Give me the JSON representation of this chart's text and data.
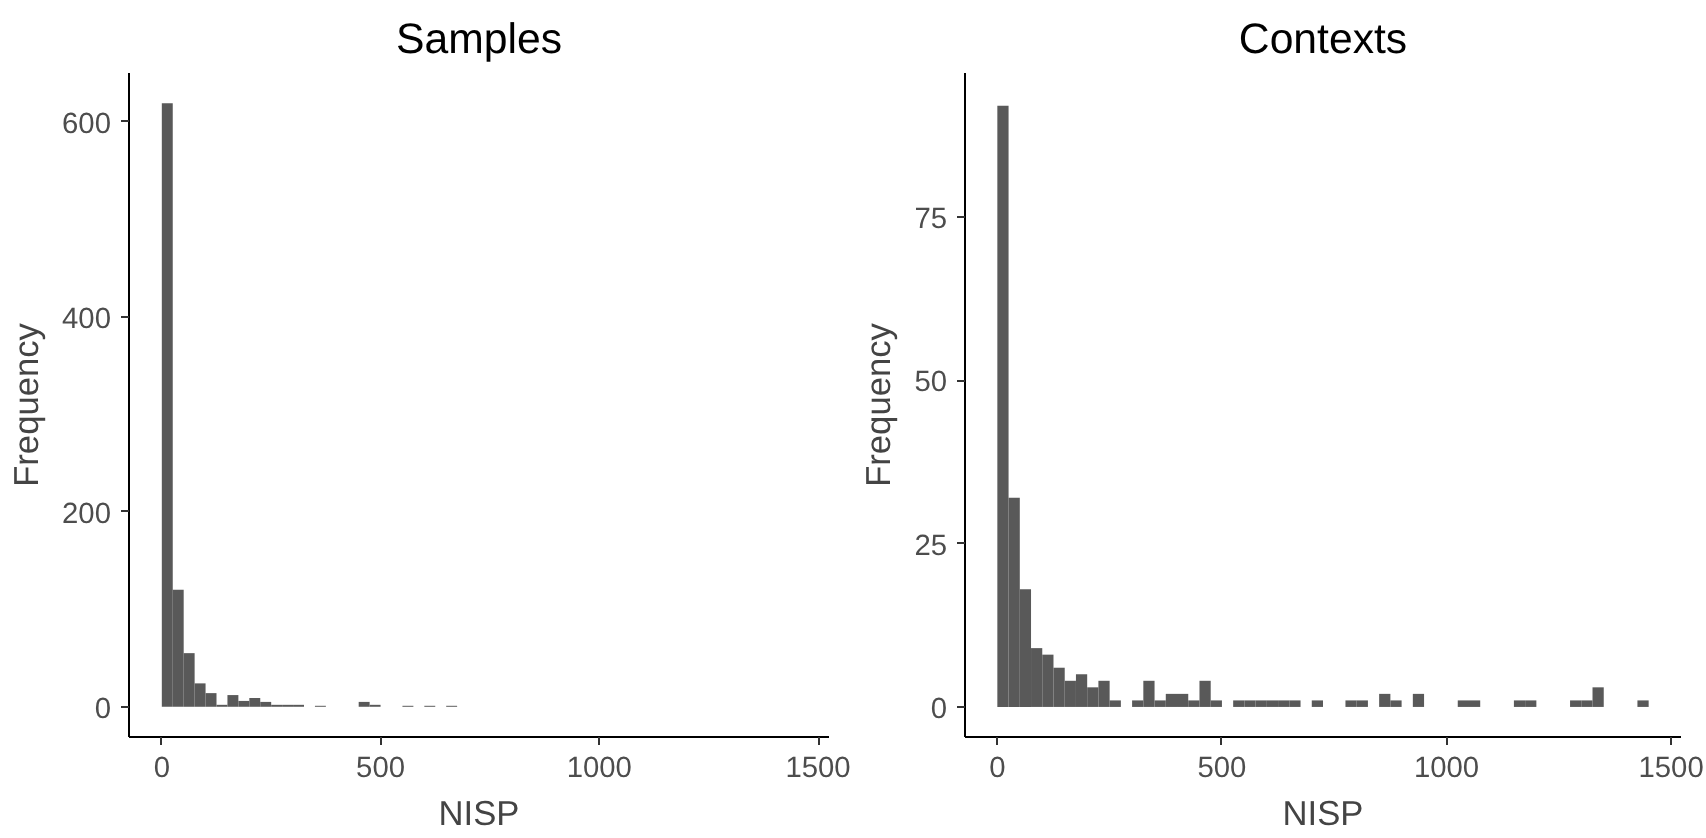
{
  "chart_data": [
    {
      "type": "histogram",
      "title": "Samples",
      "xlabel": "NISP",
      "ylabel": "Frequency",
      "color": "#595959",
      "grid": false,
      "bins": [
        0,
        25,
        50,
        75,
        100,
        125,
        150,
        175,
        200,
        225,
        250,
        275,
        300,
        325,
        350,
        375,
        400,
        425,
        450,
        475,
        500,
        525,
        550,
        575,
        600,
        625,
        650,
        675
      ],
      "values": [
        619,
        120,
        55,
        24,
        14,
        2,
        12,
        6,
        9,
        5,
        2,
        2,
        2,
        0,
        1,
        0,
        0,
        0,
        5,
        2,
        0,
        0,
        1,
        0,
        1,
        0,
        1
      ],
      "xlim": [
        -75,
        1525
      ],
      "xticks": [
        0,
        500,
        1000,
        1500
      ],
      "ylim": [
        -31,
        650
      ],
      "yticks": [
        0,
        200,
        400,
        600
      ]
    },
    {
      "type": "histogram",
      "title": "Contexts",
      "xlabel": "NISP",
      "ylabel": "Frequency",
      "color": "#595959",
      "grid": false,
      "bins": [
        0,
        25,
        50,
        75,
        100,
        125,
        150,
        175,
        200,
        225,
        250,
        275,
        300,
        325,
        350,
        375,
        400,
        425,
        450,
        475,
        500,
        525,
        550,
        575,
        600,
        625,
        650,
        675,
        700,
        725,
        750,
        775,
        800,
        825,
        850,
        875,
        900,
        925,
        950,
        975,
        1000,
        1025,
        1050,
        1075,
        1100,
        1125,
        1150,
        1175,
        1200,
        1225,
        1250,
        1275,
        1300,
        1325,
        1350,
        1375,
        1400,
        1425,
        1450
      ],
      "values": [
        92,
        32,
        18,
        9,
        8,
        6,
        4,
        5,
        3,
        4,
        1,
        0,
        1,
        4,
        1,
        2,
        2,
        1,
        4,
        1,
        0,
        1,
        1,
        1,
        1,
        1,
        1,
        0,
        1,
        0,
        0,
        1,
        1,
        0,
        2,
        1,
        0,
        2,
        0,
        0,
        0,
        1,
        1,
        0,
        0,
        0,
        1,
        1,
        0,
        0,
        0,
        1,
        1,
        3,
        0,
        0,
        0,
        1
      ],
      "xlim": [
        -72,
        1522
      ],
      "xticks": [
        0,
        500,
        1000,
        1500
      ],
      "ylim": [
        -4.6,
        97
      ],
      "yticks": [
        0,
        25,
        50,
        75
      ]
    }
  ]
}
